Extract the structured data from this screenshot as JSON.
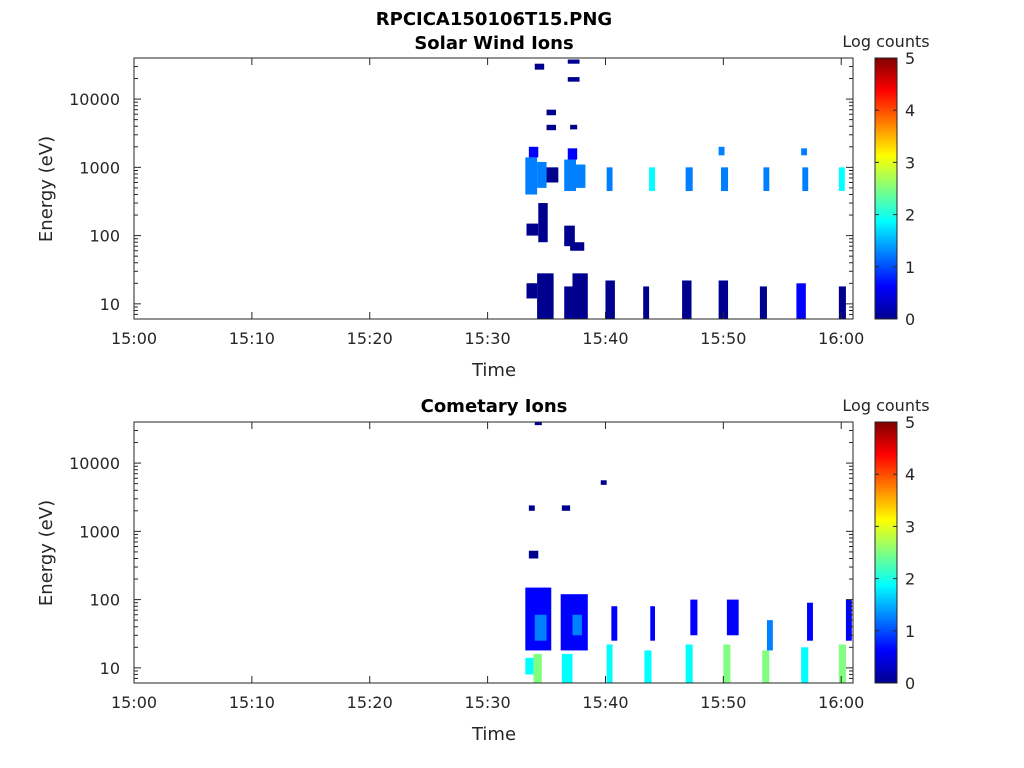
{
  "figure_title": "RPCICA150106T15.PNG",
  "colors": {
    "colormap": [
      "#00008f",
      "#0000ff",
      "#0080ff",
      "#00ffff",
      "#80ff80",
      "#ffff00",
      "#ff8000",
      "#ff0000",
      "#800000"
    ],
    "axis": "#262626"
  },
  "chart_data": [
    {
      "type": "heatmap",
      "title": "Solar Wind Ions",
      "xlabel": "Time",
      "ylabel": "Energy (eV)",
      "x_tick_labels": [
        "15:00",
        "15:10",
        "15:20",
        "15:30",
        "15:40",
        "15:50",
        "16:00"
      ],
      "x_tick_minutes": [
        0,
        10,
        20,
        30,
        40,
        50,
        60
      ],
      "xlim_minutes": [
        0,
        61
      ],
      "y_scale": "log",
      "y_tick_labels": [
        "10",
        "100",
        "1000",
        "10000"
      ],
      "y_tick_values": [
        10,
        100,
        1000,
        10000
      ],
      "ylim": [
        6,
        40000
      ],
      "colorbar": {
        "label": "Log counts",
        "ticks": [
          "0",
          "1",
          "2",
          "3",
          "4",
          "5"
        ],
        "range": [
          0,
          5
        ]
      },
      "blocks": [
        {
          "t0": 33.2,
          "t1": 34.2,
          "e0": 400,
          "e1": 1400,
          "level": 1.4
        },
        {
          "t0": 34.2,
          "t1": 35.0,
          "e0": 500,
          "e1": 1200,
          "level": 1.0
        },
        {
          "t0": 33.5,
          "t1": 34.3,
          "e0": 1400,
          "e1": 2000,
          "level": 0.5
        },
        {
          "t0": 35.0,
          "t1": 36.0,
          "e0": 600,
          "e1": 1000,
          "level": 0.3
        },
        {
          "t0": 34.3,
          "t1": 35.1,
          "e0": 80,
          "e1": 300,
          "level": 0.2
        },
        {
          "t0": 33.3,
          "t1": 34.3,
          "e0": 100,
          "e1": 150,
          "level": 0.2
        },
        {
          "t0": 33.5,
          "t1": 34.0,
          "e0": 15,
          "e1": 20,
          "level": 0.3
        },
        {
          "t0": 34.2,
          "t1": 35.6,
          "e0": 6,
          "e1": 28,
          "level": 0.2
        },
        {
          "t0": 33.3,
          "t1": 34.2,
          "e0": 12,
          "e1": 20,
          "level": 0.2
        },
        {
          "t0": 35.0,
          "t1": 35.8,
          "e0": 3500,
          "e1": 4200,
          "level": 0.2
        },
        {
          "t0": 35.0,
          "t1": 35.8,
          "e0": 5800,
          "e1": 7000,
          "level": 0.2
        },
        {
          "t0": 34.0,
          "t1": 34.8,
          "e0": 27000,
          "e1": 33000,
          "level": 0.2
        },
        {
          "t0": 36.5,
          "t1": 37.5,
          "e0": 450,
          "e1": 1300,
          "level": 1.5
        },
        {
          "t0": 37.5,
          "t1": 38.3,
          "e0": 500,
          "e1": 1100,
          "level": 1.0
        },
        {
          "t0": 36.8,
          "t1": 37.6,
          "e0": 1300,
          "e1": 1900,
          "level": 0.5
        },
        {
          "t0": 36.5,
          "t1": 37.4,
          "e0": 70,
          "e1": 140,
          "level": 0.3
        },
        {
          "t0": 37.0,
          "t1": 38.2,
          "e0": 60,
          "e1": 80,
          "level": 0.2
        },
        {
          "t0": 37.2,
          "t1": 38.5,
          "e0": 6,
          "e1": 28,
          "level": 0.2
        },
        {
          "t0": 36.5,
          "t1": 37.2,
          "e0": 6,
          "e1": 18,
          "level": 0.2
        },
        {
          "t0": 37.0,
          "t1": 37.6,
          "e0": 3600,
          "e1": 4200,
          "level": 0.2
        },
        {
          "t0": 36.8,
          "t1": 37.8,
          "e0": 18000,
          "e1": 21000,
          "level": 0.2
        },
        {
          "t0": 36.8,
          "t1": 37.8,
          "e0": 33000,
          "e1": 38000,
          "level": 0.2
        },
        {
          "t0": 40.1,
          "t1": 40.6,
          "e0": 450,
          "e1": 1000,
          "level": 1.5
        },
        {
          "t0": 40.0,
          "t1": 40.8,
          "e0": 6,
          "e1": 22,
          "level": 0.3
        },
        {
          "t0": 43.7,
          "t1": 44.2,
          "e0": 450,
          "e1": 1000,
          "level": 1.6
        },
        {
          "t0": 43.2,
          "t1": 43.7,
          "e0": 6,
          "e1": 18,
          "level": 0.2
        },
        {
          "t0": 46.8,
          "t1": 47.4,
          "e0": 450,
          "e1": 1000,
          "level": 1.5
        },
        {
          "t0": 46.5,
          "t1": 47.3,
          "e0": 6,
          "e1": 22,
          "level": 0.2
        },
        {
          "t0": 49.6,
          "t1": 50.1,
          "e0": 1500,
          "e1": 2000,
          "level": 1.1
        },
        {
          "t0": 49.8,
          "t1": 50.4,
          "e0": 450,
          "e1": 1000,
          "level": 1.2
        },
        {
          "t0": 49.6,
          "t1": 50.4,
          "e0": 6,
          "e1": 22,
          "level": 0.3
        },
        {
          "t0": 53.4,
          "t1": 53.9,
          "e0": 450,
          "e1": 1000,
          "level": 1.4
        },
        {
          "t0": 53.1,
          "t1": 53.7,
          "e0": 6,
          "e1": 18,
          "level": 0.2
        },
        {
          "t0": 56.6,
          "t1": 57.1,
          "e0": 1500,
          "e1": 1900,
          "level": 1.0
        },
        {
          "t0": 56.7,
          "t1": 57.2,
          "e0": 450,
          "e1": 1000,
          "level": 1.5
        },
        {
          "t0": 56.2,
          "t1": 57.0,
          "e0": 6,
          "e1": 20,
          "level": 0.7
        },
        {
          "t0": 59.8,
          "t1": 60.3,
          "e0": 450,
          "e1": 1000,
          "level": 1.6
        },
        {
          "t0": 59.8,
          "t1": 60.4,
          "e0": 6,
          "e1": 18,
          "level": 0.2
        }
      ]
    },
    {
      "type": "heatmap",
      "title": "Cometary Ions",
      "xlabel": "Time",
      "ylabel": "Energy (eV)",
      "x_tick_labels": [
        "15:00",
        "15:10",
        "15:20",
        "15:30",
        "15:40",
        "15:50",
        "16:00"
      ],
      "x_tick_minutes": [
        0,
        10,
        20,
        30,
        40,
        50,
        60
      ],
      "xlim_minutes": [
        0,
        61
      ],
      "y_scale": "log",
      "y_tick_labels": [
        "10",
        "100",
        "1000",
        "10000"
      ],
      "y_tick_values": [
        10,
        100,
        1000,
        10000
      ],
      "ylim": [
        6,
        40000
      ],
      "colorbar": {
        "label": "Log counts",
        "ticks": [
          "0",
          "1",
          "2",
          "3",
          "4",
          "5"
        ],
        "range": [
          0,
          5
        ]
      },
      "blocks": [
        {
          "t0": 33.2,
          "t1": 33.9,
          "e0": 8,
          "e1": 14,
          "level": 2.0
        },
        {
          "t0": 33.9,
          "t1": 34.6,
          "e0": 6,
          "e1": 16,
          "level": 2.2
        },
        {
          "t0": 33.2,
          "t1": 35.4,
          "e0": 18,
          "e1": 150,
          "level": 0.8
        },
        {
          "t0": 34.0,
          "t1": 35.0,
          "e0": 25,
          "e1": 60,
          "level": 1.3
        },
        {
          "t0": 33.5,
          "t1": 34.3,
          "e0": 400,
          "e1": 520,
          "level": 0.2
        },
        {
          "t0": 33.5,
          "t1": 34.0,
          "e0": 2000,
          "e1": 2400,
          "level": 0.2
        },
        {
          "t0": 36.3,
          "t1": 37.2,
          "e0": 6,
          "e1": 16,
          "level": 2.1
        },
        {
          "t0": 36.2,
          "t1": 38.5,
          "e0": 18,
          "e1": 120,
          "level": 0.7
        },
        {
          "t0": 37.2,
          "t1": 38.0,
          "e0": 30,
          "e1": 60,
          "level": 1.0
        },
        {
          "t0": 36.3,
          "t1": 37.0,
          "e0": 2000,
          "e1": 2400,
          "level": 0.2
        },
        {
          "t0": 34.0,
          "t1": 34.6,
          "e0": 36000,
          "e1": 40000,
          "level": 0.2
        },
        {
          "t0": 40.1,
          "t1": 40.6,
          "e0": 6,
          "e1": 22,
          "level": 2.1
        },
        {
          "t0": 40.5,
          "t1": 41.0,
          "e0": 25,
          "e1": 80,
          "level": 0.8
        },
        {
          "t0": 43.3,
          "t1": 43.9,
          "e0": 6,
          "e1": 18,
          "level": 2.0
        },
        {
          "t0": 43.8,
          "t1": 44.2,
          "e0": 25,
          "e1": 80,
          "level": 0.7
        },
        {
          "t0": 46.8,
          "t1": 47.4,
          "e0": 6,
          "e1": 22,
          "level": 2.0
        },
        {
          "t0": 47.2,
          "t1": 47.8,
          "e0": 30,
          "e1": 100,
          "level": 0.8
        },
        {
          "t0": 50.0,
          "t1": 50.6,
          "e0": 6,
          "e1": 22,
          "level": 2.4
        },
        {
          "t0": 50.3,
          "t1": 51.3,
          "e0": 30,
          "e1": 100,
          "level": 0.8
        },
        {
          "t0": 53.3,
          "t1": 53.9,
          "e0": 6,
          "e1": 18,
          "level": 2.2
        },
        {
          "t0": 53.7,
          "t1": 54.2,
          "e0": 18,
          "e1": 50,
          "level": 1.0
        },
        {
          "t0": 56.6,
          "t1": 57.2,
          "e0": 6,
          "e1": 20,
          "level": 2.0
        },
        {
          "t0": 57.1,
          "t1": 57.6,
          "e0": 25,
          "e1": 90,
          "level": 0.7
        },
        {
          "t0": 59.8,
          "t1": 60.4,
          "e0": 6,
          "e1": 22,
          "level": 2.2
        },
        {
          "t0": 60.4,
          "t1": 60.9,
          "e0": 25,
          "e1": 100,
          "level": 0.7
        },
        {
          "t0": 39.6,
          "t1": 40.1,
          "e0": 4800,
          "e1": 5600,
          "level": 0.2
        }
      ]
    }
  ]
}
